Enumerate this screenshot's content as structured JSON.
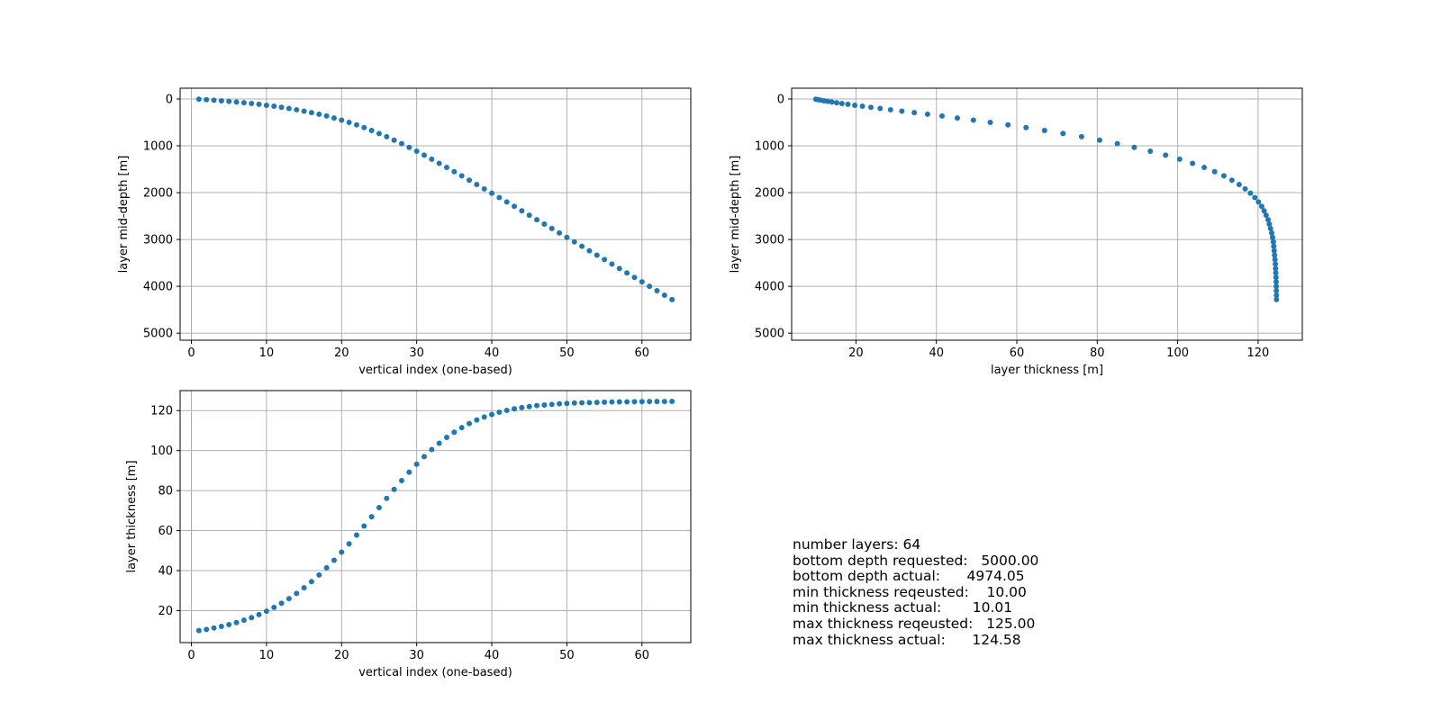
{
  "colors": {
    "marker": "#1f77b4",
    "grid": "#b0b0b0",
    "axis": "#000000"
  },
  "chart_data": [
    {
      "type": "scatter",
      "xlabel": "vertical index (one-based)",
      "ylabel": "layer mid-depth [m]",
      "xlim": [
        -1.5,
        66.5
      ],
      "ylim": [
        5150,
        -230
      ],
      "y_inverted": true,
      "xticks": [
        0,
        10,
        20,
        30,
        40,
        50,
        60
      ],
      "yticks": [
        0,
        1000,
        2000,
        3000,
        4000,
        5000
      ],
      "grid": true,
      "x": [
        1,
        2,
        3,
        4,
        5,
        6,
        7,
        8,
        9,
        10,
        11,
        12,
        13,
        14,
        15,
        16,
        17,
        18,
        19,
        20,
        21,
        22,
        23,
        24,
        25,
        26,
        27,
        28,
        29,
        30,
        31,
        32,
        33,
        34,
        35,
        36,
        37,
        38,
        39,
        40,
        41,
        42,
        43,
        44,
        45,
        46,
        47,
        48,
        49,
        50,
        51,
        52,
        53,
        54,
        55,
        56,
        57,
        58,
        59,
        60,
        61,
        62,
        63,
        64
      ],
      "y": [
        5,
        16,
        27,
        39,
        52,
        65,
        80,
        96,
        114,
        134,
        155,
        178,
        203,
        230,
        259,
        291,
        326,
        364,
        406,
        452,
        500,
        553,
        610,
        672,
        737,
        806,
        879,
        955,
        1034,
        1116,
        1200,
        1286,
        1374,
        1462,
        1552,
        1642,
        1734,
        1826,
        1919,
        2012,
        2105,
        2199,
        2293,
        2388,
        2482,
        2577,
        2671,
        2766,
        2861,
        2955,
        3050,
        3145,
        3240,
        3334,
        3429,
        3524,
        3619,
        3714,
        3809,
        3904,
        3999,
        4094,
        4189,
        4284
      ]
    },
    {
      "type": "scatter",
      "xlabel": "layer thickness [m]",
      "ylabel": "layer mid-depth [m]",
      "xlim": [
        4,
        131
      ],
      "ylim": [
        5150,
        -230
      ],
      "y_inverted": true,
      "xticks": [
        20,
        40,
        60,
        80,
        100,
        120
      ],
      "yticks": [
        0,
        1000,
        2000,
        3000,
        4000,
        5000
      ],
      "grid": true,
      "x": [
        10.01,
        10.6,
        11.3,
        12.1,
        13.0,
        14.0,
        15.2,
        16.5,
        18.0,
        19.7,
        21.6,
        23.7,
        26.0,
        28.6,
        31.4,
        34.5,
        37.8,
        41.4,
        45.2,
        49.2,
        53.4,
        57.8,
        62.3,
        66.9,
        71.5,
        76.1,
        80.6,
        85.0,
        89.2,
        93.2,
        97.0,
        100.5,
        103.7,
        106.6,
        109.2,
        111.5,
        113.5,
        115.3,
        116.8,
        118.1,
        119.2,
        120.1,
        120.9,
        121.5,
        122.0,
        122.5,
        122.8,
        123.1,
        123.4,
        123.6,
        123.8,
        123.9,
        124.0,
        124.1,
        124.2,
        124.3,
        124.35,
        124.4,
        124.45,
        124.5,
        124.52,
        124.55,
        124.57,
        124.58
      ],
      "y": [
        5,
        16,
        27,
        39,
        52,
        65,
        80,
        96,
        114,
        134,
        155,
        178,
        203,
        230,
        259,
        291,
        326,
        364,
        406,
        452,
        500,
        553,
        610,
        672,
        737,
        806,
        879,
        955,
        1034,
        1116,
        1200,
        1286,
        1374,
        1462,
        1552,
        1642,
        1734,
        1826,
        1919,
        2012,
        2105,
        2199,
        2293,
        2388,
        2482,
        2577,
        2671,
        2766,
        2861,
        2955,
        3050,
        3145,
        3240,
        3334,
        3429,
        3524,
        3619,
        3714,
        3809,
        3904,
        3999,
        4094,
        4189,
        4284
      ]
    },
    {
      "type": "scatter",
      "xlabel": "vertical index (one-based)",
      "ylabel": "layer thickness [m]",
      "xlim": [
        -1.5,
        66.5
      ],
      "ylim": [
        4,
        130
      ],
      "xticks": [
        0,
        10,
        20,
        30,
        40,
        50,
        60
      ],
      "yticks": [
        20,
        40,
        60,
        80,
        100,
        120
      ],
      "grid": true,
      "x": [
        1,
        2,
        3,
        4,
        5,
        6,
        7,
        8,
        9,
        10,
        11,
        12,
        13,
        14,
        15,
        16,
        17,
        18,
        19,
        20,
        21,
        22,
        23,
        24,
        25,
        26,
        27,
        28,
        29,
        30,
        31,
        32,
        33,
        34,
        35,
        36,
        37,
        38,
        39,
        40,
        41,
        42,
        43,
        44,
        45,
        46,
        47,
        48,
        49,
        50,
        51,
        52,
        53,
        54,
        55,
        56,
        57,
        58,
        59,
        60,
        61,
        62,
        63,
        64
      ],
      "y": [
        10.01,
        10.6,
        11.3,
        12.1,
        13.0,
        14.0,
        15.2,
        16.5,
        18.0,
        19.7,
        21.6,
        23.7,
        26.0,
        28.6,
        31.4,
        34.5,
        37.8,
        41.4,
        45.2,
        49.2,
        53.4,
        57.8,
        62.3,
        66.9,
        71.5,
        76.1,
        80.6,
        85.0,
        89.2,
        93.2,
        97.0,
        100.5,
        103.7,
        106.6,
        109.2,
        111.5,
        113.5,
        115.3,
        116.8,
        118.1,
        119.2,
        120.1,
        120.9,
        121.5,
        122.0,
        122.5,
        122.8,
        123.1,
        123.4,
        123.6,
        123.8,
        123.9,
        124.0,
        124.1,
        124.2,
        124.3,
        124.35,
        124.4,
        124.45,
        124.5,
        124.52,
        124.55,
        124.57,
        124.58
      ]
    }
  ],
  "summary": [
    "number layers: 64",
    "bottom depth requested:   5000.00",
    "bottom depth actual:      4974.05",
    "min thickness reqeusted:    10.00",
    "min thickness actual:       10.01",
    "max thickness reqeusted:   125.00",
    "max thickness actual:      124.58"
  ]
}
